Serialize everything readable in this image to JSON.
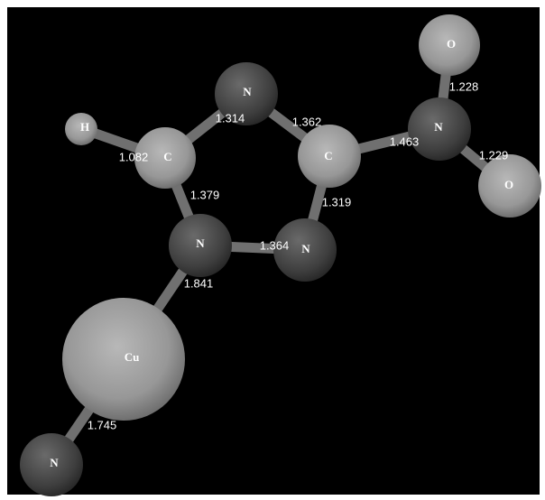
{
  "atoms": [
    {
      "label": "O"
    },
    {
      "label": "O"
    },
    {
      "label": "N"
    },
    {
      "label": "N"
    },
    {
      "label": "C"
    },
    {
      "label": "C"
    },
    {
      "label": "H"
    },
    {
      "label": "N"
    },
    {
      "label": "N"
    },
    {
      "label": "Cu"
    },
    {
      "label": "N"
    }
  ],
  "bonds": [
    {
      "label": "1.228"
    },
    {
      "label": "1.229"
    },
    {
      "label": "1.463"
    },
    {
      "label": "1.362"
    },
    {
      "label": "1.314"
    },
    {
      "label": "1.082"
    },
    {
      "label": "1.379"
    },
    {
      "label": "1.319"
    },
    {
      "label": "1.364"
    },
    {
      "label": "1.841"
    },
    {
      "label": "1.745"
    }
  ]
}
